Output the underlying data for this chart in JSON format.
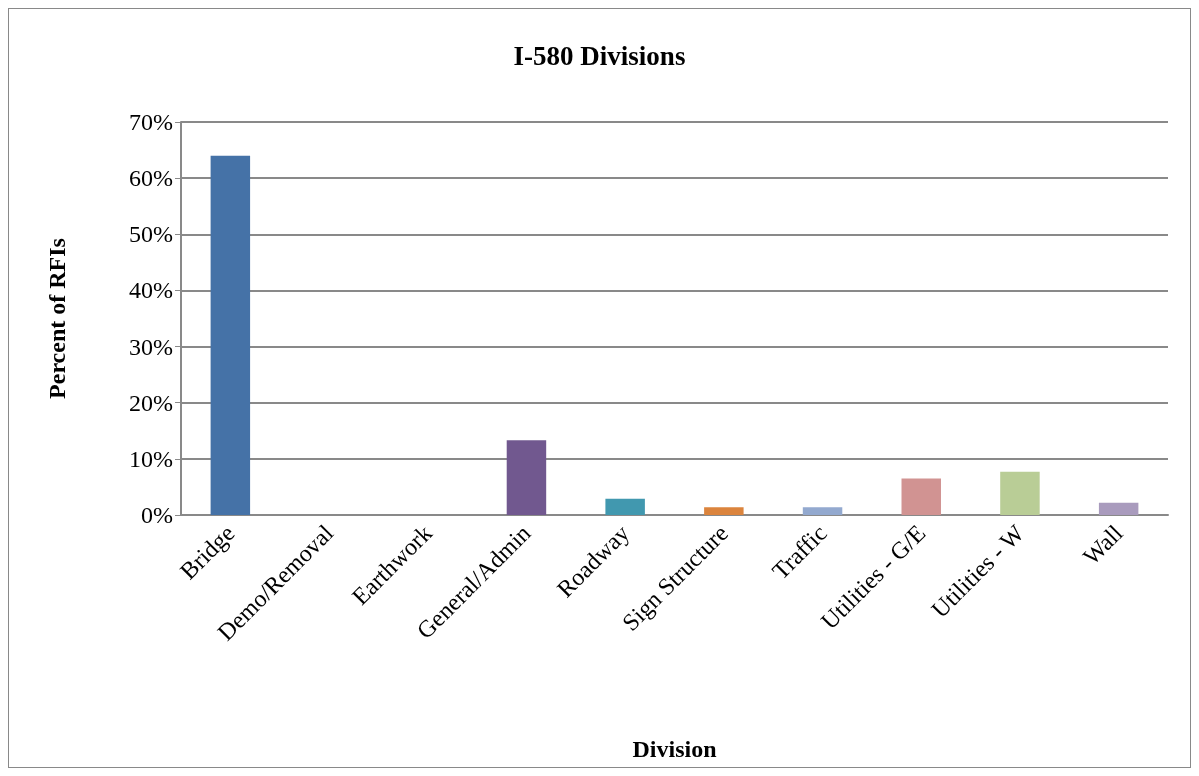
{
  "chart_data": {
    "type": "bar",
    "title": "I-580 Divisions",
    "xlabel": "Division",
    "ylabel": "Percent of RFIs",
    "categories": [
      "Bridge",
      "Demo/Removal",
      "Earthwork",
      "General/Admin",
      "Roadway",
      "Sign Structure",
      "Traffic",
      "Utilities - G/E",
      "Utilities - W",
      "Wall"
    ],
    "values": [
      64.0,
      0,
      0,
      13.3,
      2.9,
      1.4,
      1.4,
      6.5,
      7.7,
      2.2
    ],
    "colors": [
      "#4572a7",
      "#aa4643",
      "#89a54e",
      "#71588f",
      "#4198af",
      "#db843d",
      "#93a9cf",
      "#d19392",
      "#b9cd96",
      "#a99bbd"
    ],
    "ylim": [
      0,
      70
    ],
    "yticks": [
      {
        "value": 0,
        "label": "0%"
      },
      {
        "value": 10,
        "label": "10%"
      },
      {
        "value": 20,
        "label": "20%"
      },
      {
        "value": 30,
        "label": "30%"
      },
      {
        "value": 40,
        "label": "40%"
      },
      {
        "value": 50,
        "label": "50%"
      },
      {
        "value": 60,
        "label": "60%"
      },
      {
        "value": 70,
        "label": "70%"
      }
    ],
    "grid": "y"
  }
}
